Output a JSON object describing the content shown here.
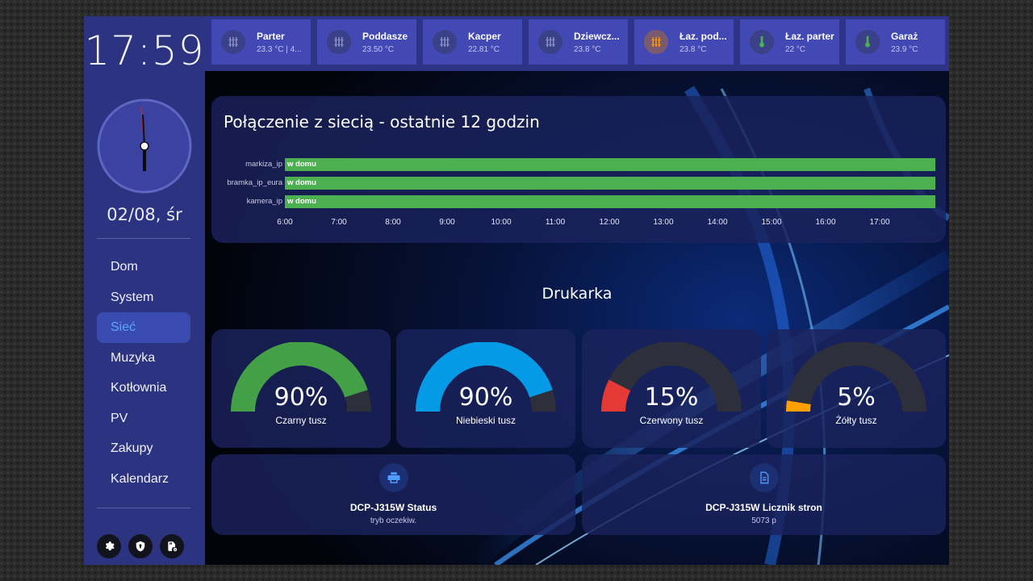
{
  "sidebar": {
    "time": "17:59",
    "date": "02/08, śr",
    "nav": [
      {
        "label": "Dom",
        "active": false
      },
      {
        "label": "System",
        "active": false
      },
      {
        "label": "Sieć",
        "active": true
      },
      {
        "label": "Muzyka",
        "active": false
      },
      {
        "label": "Kotłownia",
        "active": false
      },
      {
        "label": "PV",
        "active": false
      },
      {
        "label": "Zakupy",
        "active": false
      },
      {
        "label": "Kalendarz",
        "active": false
      }
    ],
    "footer_icons": [
      "settings-icon",
      "shield-icon",
      "sd-card-settings-icon"
    ]
  },
  "tiles": [
    {
      "name": "Parter",
      "value": "23.3 °C | 4...",
      "icon": "radiator-icon"
    },
    {
      "name": "Poddasze",
      "value": "23.50 °C",
      "icon": "radiator-icon"
    },
    {
      "name": "Kacper",
      "value": "22.81 °C",
      "icon": "radiator-icon"
    },
    {
      "name": "Dziewcz...",
      "value": "23.8 °C",
      "icon": "radiator-icon"
    },
    {
      "name": "Łaz. pod...",
      "value": "23.8 °C",
      "icon": "radiator-icon-active"
    },
    {
      "name": "Łaz. parter",
      "value": "22 °C",
      "icon": "thermometer-icon"
    },
    {
      "name": "Garaż",
      "value": "23.9 °C",
      "icon": "thermometer-icon"
    }
  ],
  "network": {
    "title": "Połączenie z siecią - ostatnie 12 godzin",
    "rows": [
      {
        "entity": "markiza_ip",
        "state": "w domu"
      },
      {
        "entity": "bramka_ip_eura",
        "state": "w domu"
      },
      {
        "entity": "kamera_ip",
        "state": "w domu"
      }
    ],
    "ticks": [
      "6:00",
      "7:00",
      "8:00",
      "9:00",
      "10:00",
      "11:00",
      "12:00",
      "13:00",
      "14:00",
      "15:00",
      "16:00",
      "17:00"
    ],
    "bar_color": "#4caf50"
  },
  "printer": {
    "title": "Drukarka",
    "gauges": [
      {
        "label": "Czarny tusz",
        "value_text": "90%",
        "value": 90,
        "color": "#43a047"
      },
      {
        "label": "Niebieski tusz",
        "value_text": "90%",
        "value": 90,
        "color": "#039be5"
      },
      {
        "label": "Czerwony tusz",
        "value_text": "15%",
        "value": 15,
        "color": "#e53935"
      },
      {
        "label": "Żółty tusz",
        "value_text": "5%",
        "value": 5,
        "color": "#ffa000"
      }
    ],
    "info": [
      {
        "name": "DCP-J315W Status",
        "state": "tryb oczekiw.",
        "icon": "printer-icon"
      },
      {
        "name": "DCP-J315W Licznik stron",
        "state": "5073 p",
        "icon": "file-document-icon"
      }
    ]
  },
  "colors": {
    "sidebar": "#2c3380",
    "tile": "#4249b5",
    "accent": "#5aa8ff",
    "gauge_track": "#2d2f3a"
  }
}
